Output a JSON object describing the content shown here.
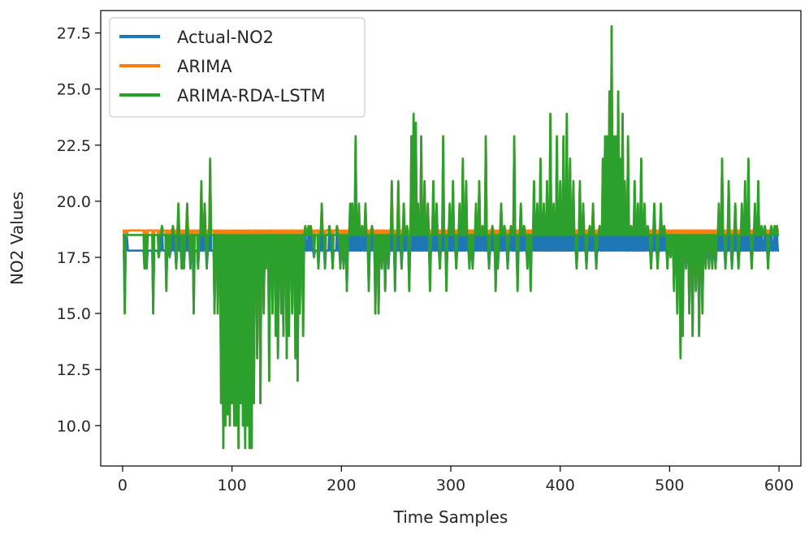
{
  "chart_data": {
    "type": "line",
    "title": "",
    "xlabel": "Time Samples",
    "ylabel": "NO2 Values",
    "xlim": [
      -20,
      620
    ],
    "ylim": [
      8.2,
      28.5
    ],
    "xticks": [
      0,
      100,
      200,
      300,
      400,
      500,
      600
    ],
    "yticks": [
      10.0,
      12.5,
      15.0,
      17.5,
      20.0,
      22.5,
      25.0,
      27.5
    ],
    "xtick_labels": [
      "0",
      "100",
      "200",
      "300",
      "400",
      "500",
      "600"
    ],
    "ytick_labels": [
      "10.0",
      "12.5",
      "15.0",
      "17.5",
      "20.0",
      "22.5",
      "25.0",
      "27.5"
    ],
    "legend_position": "top-left",
    "baselines": {
      "Actual-NO2": 17.8,
      "ARIMA": 18.7,
      "ARIMA-RDA-LSTM": 18.5
    },
    "series": [
      {
        "name": "Actual-NO2",
        "color": "#1f77b4",
        "legend_label": "Actual-NO2"
      },
      {
        "name": "ARIMA",
        "color": "#ff7f0e",
        "legend_label": "ARIMA"
      },
      {
        "name": "ARIMA-RDA-LSTM",
        "color": "#2ca02c",
        "legend_label": "ARIMA-RDA-LSTM"
      }
    ],
    "events": [
      [
        2,
        15.0
      ],
      [
        4,
        18.5
      ],
      [
        20,
        17.0
      ],
      [
        22,
        17.0
      ],
      [
        28,
        15.0
      ],
      [
        33,
        17.5
      ],
      [
        36,
        18.9
      ],
      [
        40,
        16.0
      ],
      [
        43,
        17.5
      ],
      [
        46,
        18.9
      ],
      [
        49,
        17.0
      ],
      [
        51,
        19.9
      ],
      [
        54,
        17.0
      ],
      [
        56,
        17.0
      ],
      [
        59,
        19.9
      ],
      [
        62,
        17.0
      ],
      [
        65,
        15.0
      ],
      [
        69,
        17.0
      ],
      [
        72,
        20.9
      ],
      [
        75,
        19.9
      ],
      [
        77,
        17.0
      ],
      [
        80,
        21.9
      ],
      [
        84,
        15.0
      ],
      [
        87,
        15.0
      ],
      [
        90,
        11.0
      ],
      [
        92,
        9.0
      ],
      [
        94,
        10.0
      ],
      [
        96,
        10.5
      ],
      [
        98,
        10.0
      ],
      [
        100,
        11.0
      ],
      [
        102,
        10.0
      ],
      [
        104,
        10.0
      ],
      [
        106,
        9.0
      ],
      [
        108,
        11.0
      ],
      [
        110,
        10.0
      ],
      [
        112,
        9.0
      ],
      [
        114,
        10.0
      ],
      [
        116,
        9.0
      ],
      [
        118,
        9.0
      ],
      [
        120,
        11.0
      ],
      [
        123,
        13.0
      ],
      [
        126,
        11.0
      ],
      [
        129,
        15.0
      ],
      [
        131,
        17.0
      ],
      [
        134,
        12.0
      ],
      [
        137,
        15.0
      ],
      [
        140,
        14.0
      ],
      [
        142,
        13.0
      ],
      [
        145,
        15.0
      ],
      [
        147,
        14.0
      ],
      [
        150,
        13.0
      ],
      [
        152,
        14.0
      ],
      [
        155,
        15.0
      ],
      [
        158,
        13.0
      ],
      [
        160,
        12.0
      ],
      [
        162,
        15.0
      ],
      [
        165,
        14.0
      ],
      [
        167,
        18.9
      ],
      [
        170,
        18.9
      ],
      [
        172,
        18.9
      ],
      [
        175,
        17.5
      ],
      [
        179,
        17.0
      ],
      [
        182,
        19.9
      ],
      [
        185,
        17.0
      ],
      [
        189,
        18.9
      ],
      [
        192,
        17.0
      ],
      [
        196,
        18.9
      ],
      [
        199,
        17.0
      ],
      [
        202,
        17.0
      ],
      [
        205,
        16.0
      ],
      [
        208,
        19.9
      ],
      [
        210,
        19.9
      ],
      [
        213,
        22.9
      ],
      [
        216,
        19.9
      ],
      [
        219,
        18.9
      ],
      [
        222,
        19.9
      ],
      [
        225,
        16.0
      ],
      [
        228,
        18.9
      ],
      [
        231,
        15.0
      ],
      [
        234,
        15.0
      ],
      [
        237,
        17.0
      ],
      [
        240,
        16.0
      ],
      [
        243,
        17.0
      ],
      [
        246,
        20.9
      ],
      [
        249,
        16.0
      ],
      [
        252,
        20.9
      ],
      [
        255,
        17.0
      ],
      [
        257,
        19.9
      ],
      [
        260,
        18.9
      ],
      [
        262,
        16.0
      ],
      [
        264,
        22.9
      ],
      [
        266,
        23.9
      ],
      [
        268,
        23.5
      ],
      [
        270,
        19.9
      ],
      [
        273,
        22.9
      ],
      [
        276,
        20.9
      ],
      [
        279,
        19.9
      ],
      [
        281,
        16.0
      ],
      [
        284,
        20.9
      ],
      [
        287,
        19.9
      ],
      [
        290,
        17.0
      ],
      [
        293,
        22.9
      ],
      [
        296,
        16.0
      ],
      [
        299,
        19.9
      ],
      [
        302,
        20.9
      ],
      [
        305,
        17.0
      ],
      [
        308,
        19.9
      ],
      [
        311,
        21.9
      ],
      [
        314,
        20.9
      ],
      [
        317,
        17.0
      ],
      [
        320,
        17.0
      ],
      [
        323,
        19.9
      ],
      [
        326,
        20.9
      ],
      [
        329,
        18.9
      ],
      [
        332,
        22.9
      ],
      [
        335,
        17.0
      ],
      [
        338,
        18.9
      ],
      [
        341,
        16.0
      ],
      [
        343,
        17.0
      ],
      [
        346,
        19.9
      ],
      [
        349,
        18.9
      ],
      [
        352,
        17.0
      ],
      [
        355,
        18.9
      ],
      [
        358,
        22.9
      ],
      [
        361,
        16.0
      ],
      [
        364,
        19.9
      ],
      [
        367,
        18.9
      ],
      [
        370,
        17.0
      ],
      [
        373,
        16.0
      ],
      [
        376,
        20.9
      ],
      [
        379,
        19.9
      ],
      [
        382,
        21.9
      ],
      [
        385,
        19.9
      ],
      [
        388,
        20.9
      ],
      [
        391,
        23.9
      ],
      [
        394,
        19.9
      ],
      [
        397,
        22.9
      ],
      [
        400,
        20.9
      ],
      [
        403,
        22.9
      ],
      [
        406,
        23.9
      ],
      [
        409,
        21.9
      ],
      [
        412,
        20.9
      ],
      [
        415,
        17.0
      ],
      [
        418,
        20.9
      ],
      [
        421,
        19.9
      ],
      [
        424,
        17.0
      ],
      [
        427,
        18.9
      ],
      [
        430,
        19.9
      ],
      [
        433,
        17.0
      ],
      [
        436,
        18.9
      ],
      [
        439,
        21.9
      ],
      [
        441,
        22.9
      ],
      [
        443,
        22.9
      ],
      [
        445,
        24.9
      ],
      [
        447,
        27.8
      ],
      [
        449,
        22.9
      ],
      [
        451,
        22.9
      ],
      [
        453,
        24.9
      ],
      [
        455,
        21.9
      ],
      [
        457,
        23.9
      ],
      [
        459,
        20.9
      ],
      [
        462,
        22.9
      ],
      [
        465,
        18.9
      ],
      [
        468,
        20.9
      ],
      [
        471,
        19.9
      ],
      [
        474,
        21.9
      ],
      [
        477,
        19.9
      ],
      [
        480,
        18.9
      ],
      [
        483,
        17.0
      ],
      [
        486,
        19.9
      ],
      [
        489,
        17.0
      ],
      [
        492,
        19.9
      ],
      [
        495,
        18.9
      ],
      [
        498,
        17.0
      ],
      [
        501,
        17.5
      ],
      [
        504,
        16.0
      ],
      [
        507,
        15.0
      ],
      [
        510,
        13.0
      ],
      [
        512,
        14.0
      ],
      [
        515,
        17.0
      ],
      [
        518,
        15.0
      ],
      [
        521,
        14.0
      ],
      [
        524,
        16.0
      ],
      [
        527,
        14.0
      ],
      [
        530,
        15.0
      ],
      [
        533,
        17.0
      ],
      [
        536,
        17.0
      ],
      [
        539,
        17.0
      ],
      [
        542,
        17.0
      ],
      [
        545,
        19.9
      ],
      [
        548,
        21.9
      ],
      [
        551,
        17.0
      ],
      [
        554,
        20.9
      ],
      [
        557,
        17.0
      ],
      [
        560,
        19.9
      ],
      [
        563,
        17.0
      ],
      [
        566,
        19.9
      ],
      [
        569,
        20.9
      ],
      [
        572,
        21.9
      ],
      [
        575,
        17.0
      ],
      [
        578,
        19.9
      ],
      [
        581,
        20.9
      ],
      [
        584,
        18.9
      ],
      [
        587,
        18.9
      ],
      [
        590,
        17.0
      ],
      [
        593,
        18.9
      ],
      [
        596,
        18.9
      ],
      [
        598,
        18.9
      ]
    ]
  }
}
